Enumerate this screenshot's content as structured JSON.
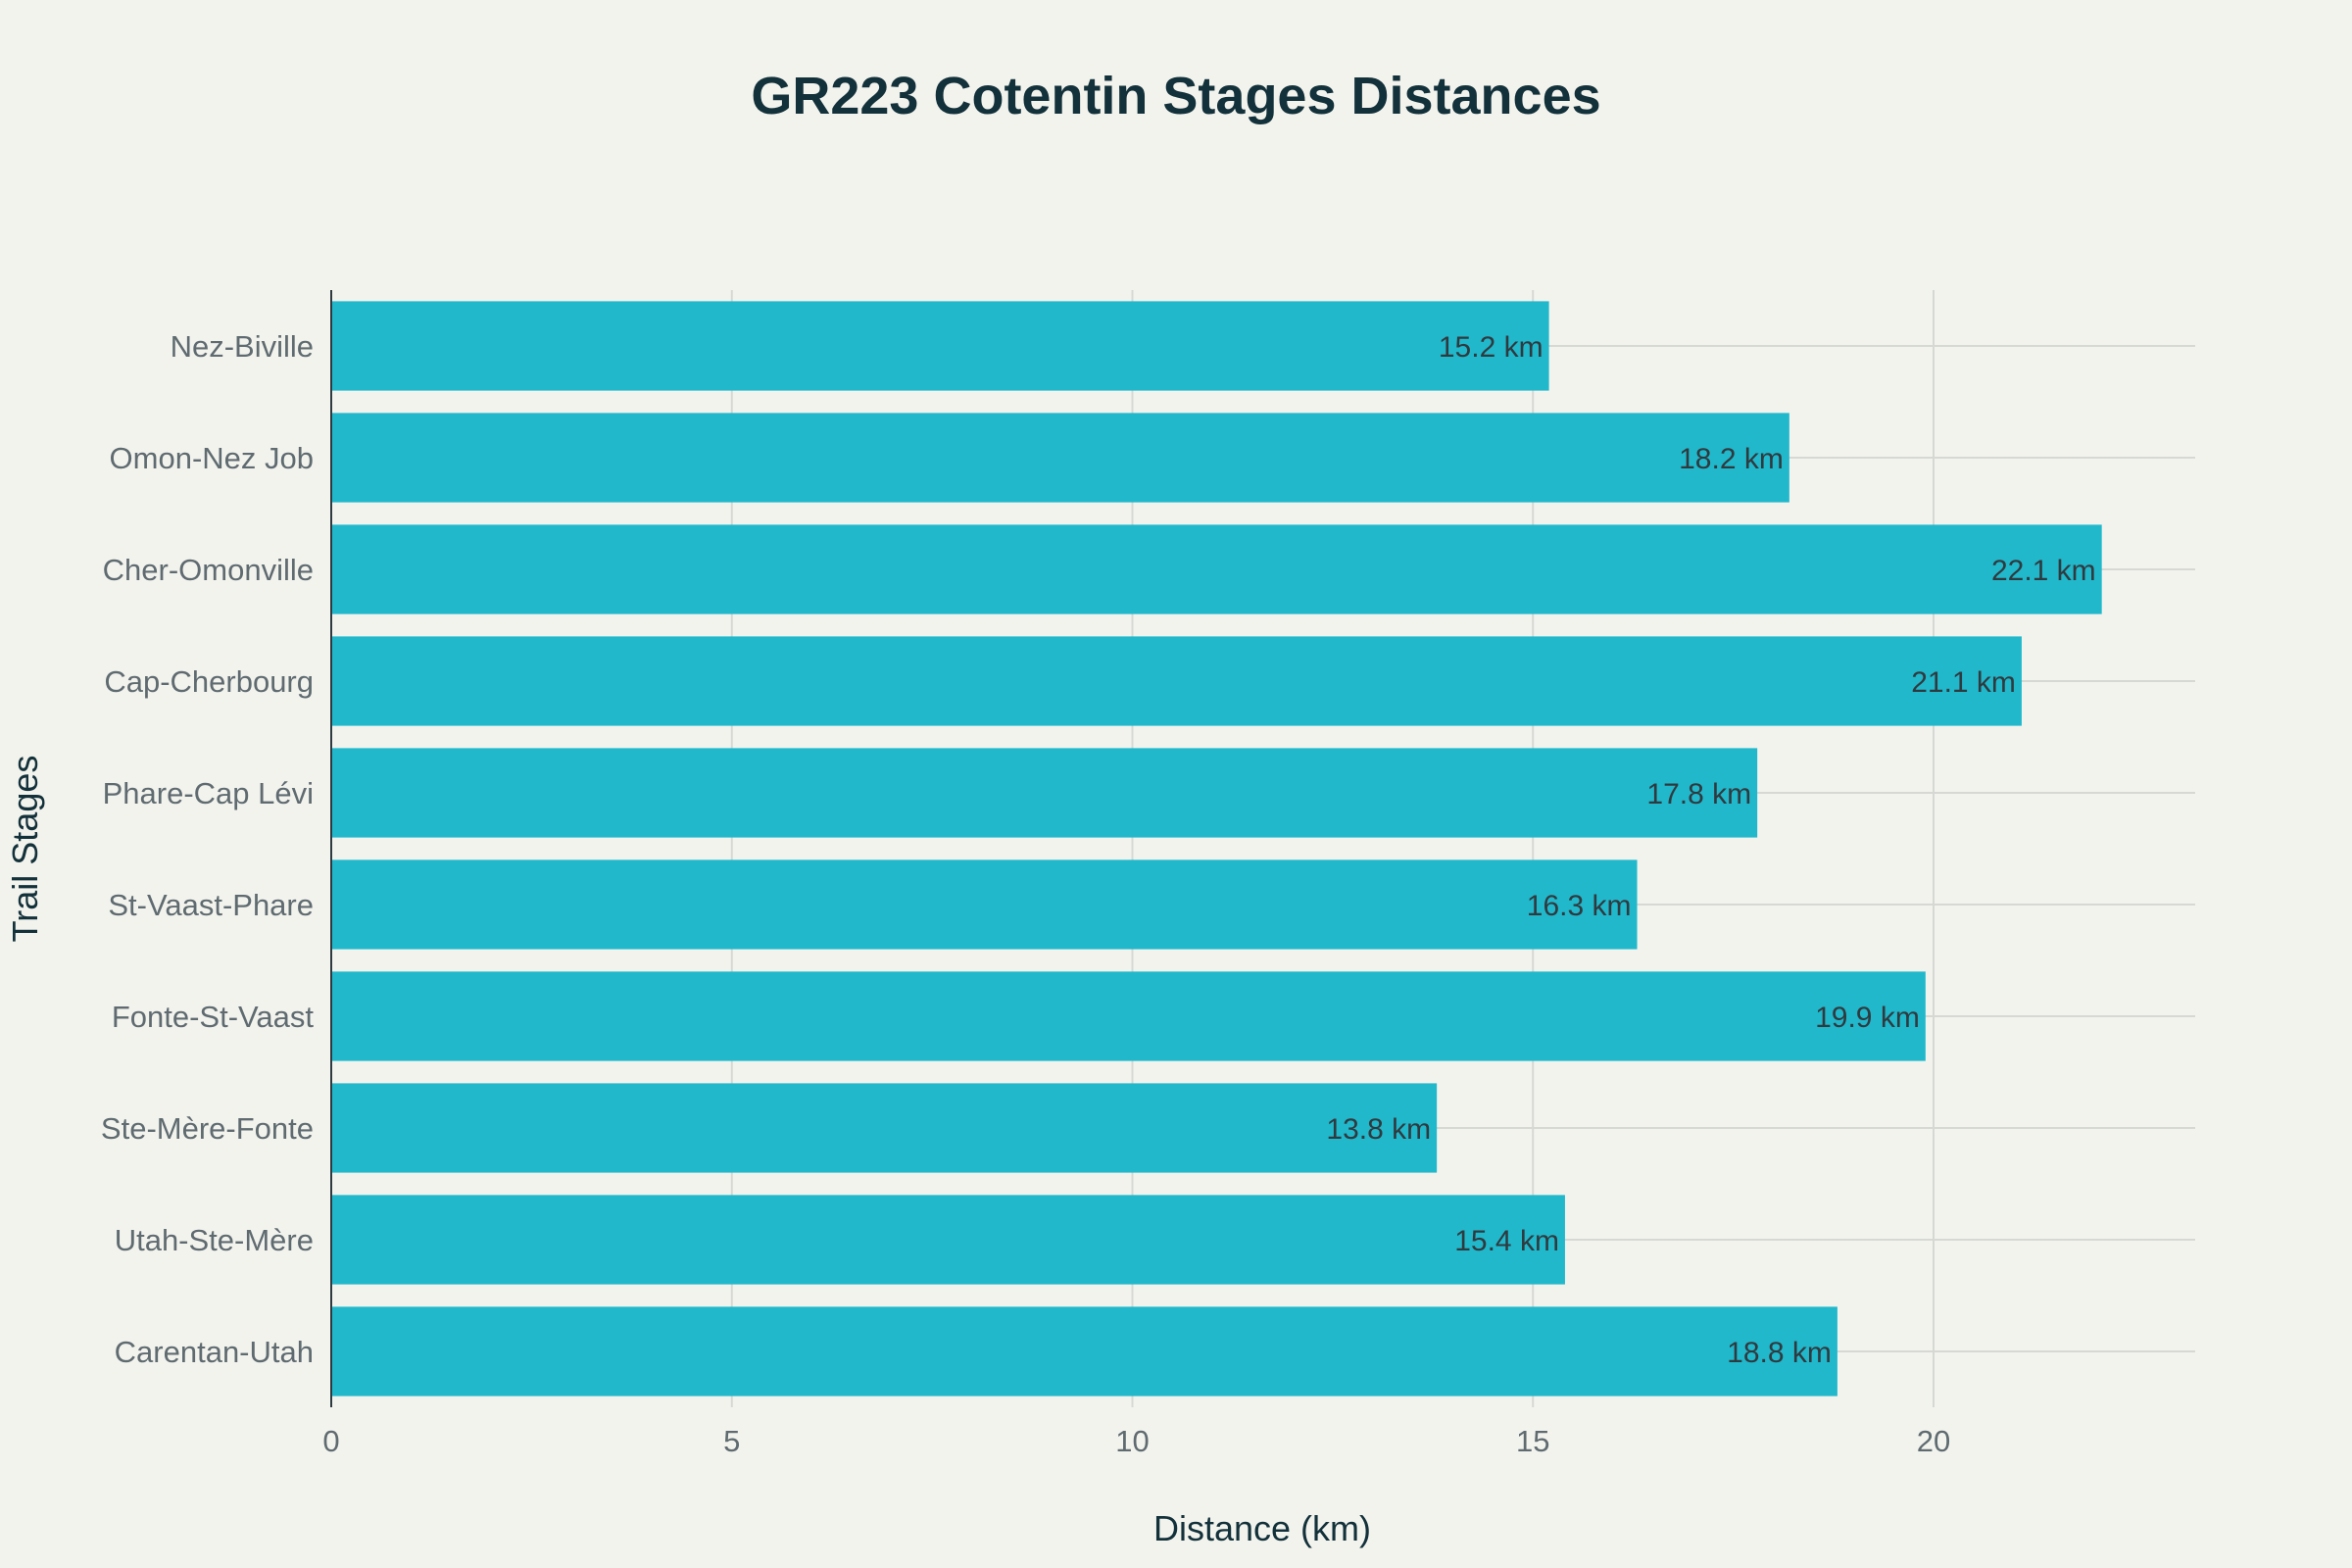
{
  "chart_data": {
    "type": "bar",
    "orientation": "horizontal",
    "title": "GR223 Cotentin Stages Distances",
    "xlabel": "Distance (km)",
    "ylabel": "Trail Stages",
    "categories": [
      "Nez-Biville",
      "Omon-Nez Job",
      "Cher-Omonville",
      "Cap-Cherbourg",
      "Phare-Cap Lévi",
      "St-Vaast-Phare",
      "Fonte-St-Vaast",
      "Ste-Mère-Fonte",
      "Utah-Ste-Mère",
      "Carentan-Utah"
    ],
    "values": [
      15.2,
      18.2,
      22.1,
      21.1,
      17.8,
      16.3,
      19.9,
      13.8,
      15.4,
      18.8
    ],
    "data_labels": [
      "15.2 km",
      "18.2 km",
      "22.1 km",
      "21.1 km",
      "17.8 km",
      "16.3 km",
      "19.9 km",
      "13.8 km",
      "15.4 km",
      "18.8 km"
    ],
    "xticks": [
      "0",
      "5",
      "10",
      "15",
      "20"
    ],
    "xtick_values": [
      0,
      5,
      10,
      15,
      20
    ],
    "xlim": [
      0,
      23.26
    ],
    "grid": true,
    "bar_color": "#21b8cc"
  }
}
